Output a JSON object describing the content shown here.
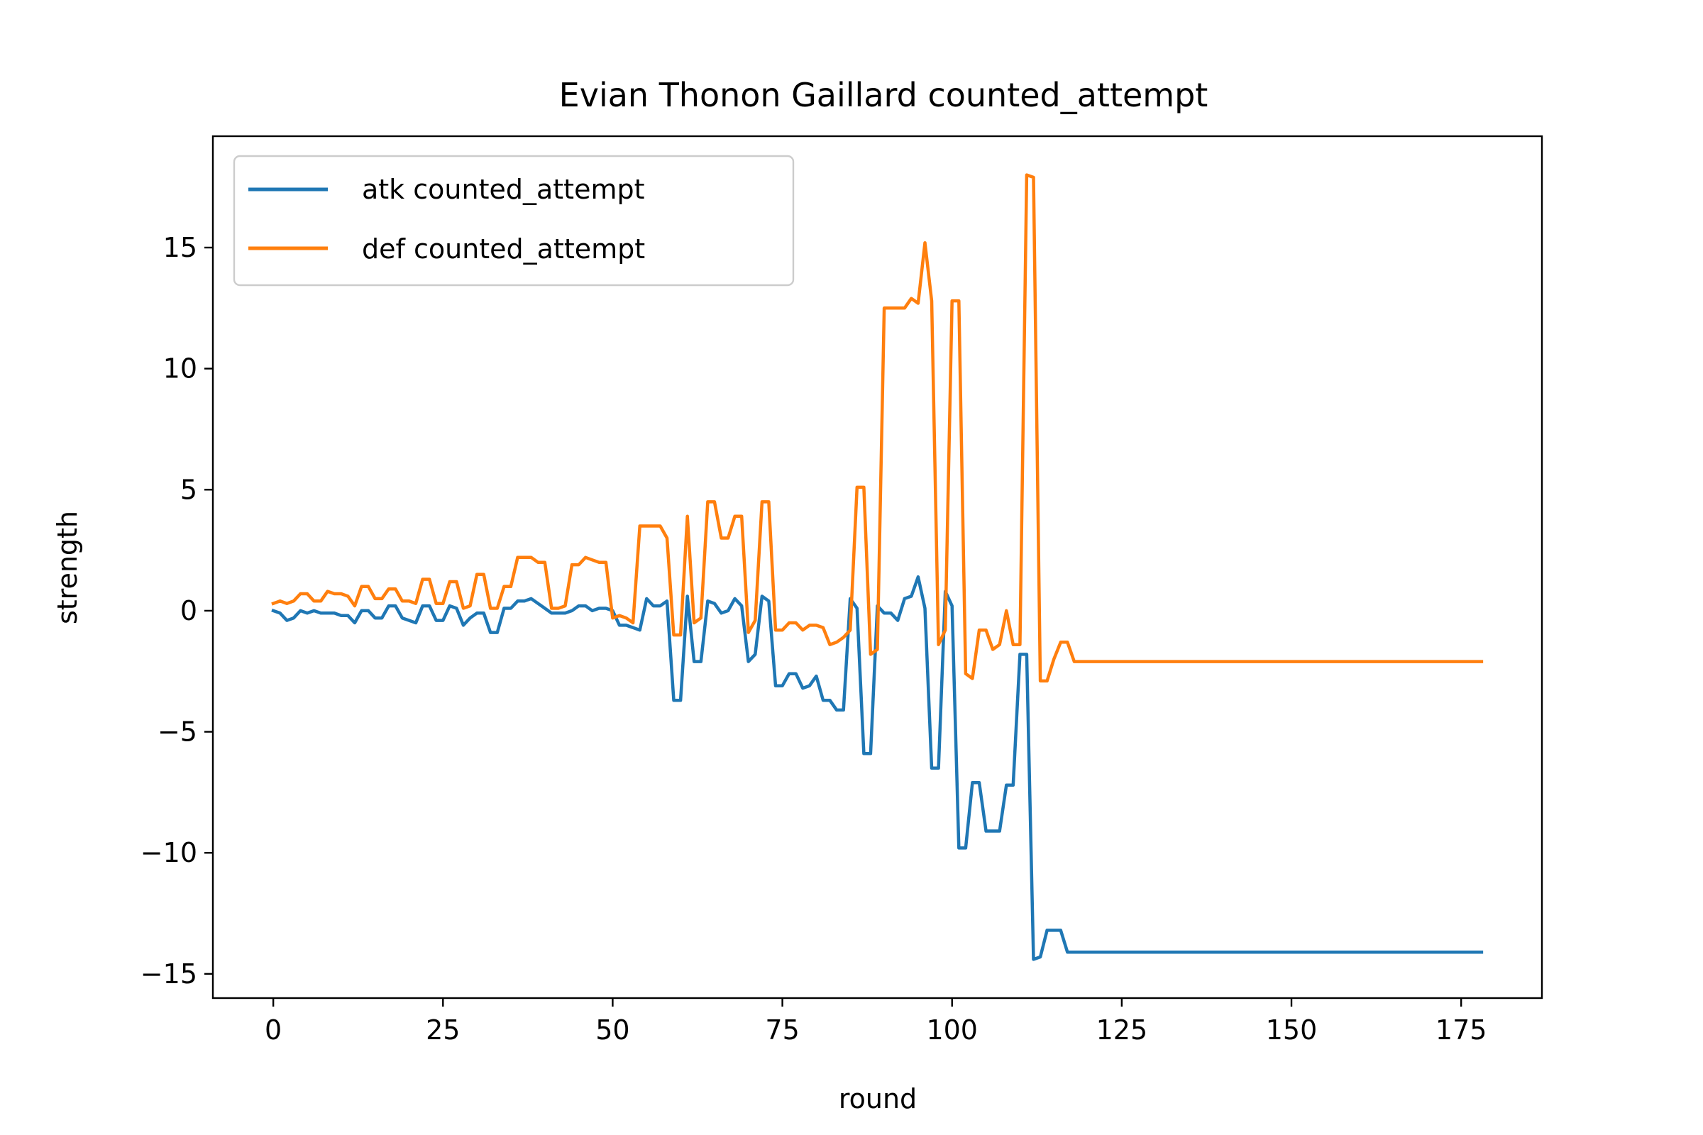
{
  "colors": {
    "atk": "#1f77b4",
    "def": "#ff7f0e"
  },
  "chart_data": {
    "type": "line",
    "title": "Evian Thonon Gaillard counted_attempt",
    "xlabel": "round",
    "ylabel": "strength",
    "xlim": [
      -8.9,
      186.9
    ],
    "ylim": [
      -16.0,
      19.6
    ],
    "xticks": [
      0,
      25,
      50,
      75,
      100,
      125,
      150,
      175
    ],
    "xtick_labels": [
      "0",
      "25",
      "50",
      "75",
      "100",
      "125",
      "150",
      "175"
    ],
    "yticks": [
      -15,
      -10,
      -5,
      0,
      5,
      10,
      15
    ],
    "ytick_labels": [
      "−15",
      "−10",
      "−5",
      "0",
      "5",
      "10",
      "15"
    ],
    "grid": false,
    "legend_position": "upper-left",
    "series": [
      {
        "name": "atk counted_attempt",
        "color": "#1f77b4",
        "points": [
          [
            0,
            0.0
          ],
          [
            1,
            -0.1
          ],
          [
            2,
            -0.4
          ],
          [
            3,
            -0.3
          ],
          [
            4,
            0.0
          ],
          [
            5,
            -0.1
          ],
          [
            6,
            0.0
          ],
          [
            7,
            -0.1
          ],
          [
            8,
            -0.1
          ],
          [
            9,
            -0.1
          ],
          [
            10,
            -0.2
          ],
          [
            11,
            -0.2
          ],
          [
            12,
            -0.5
          ],
          [
            13,
            0.0
          ],
          [
            14,
            0.0
          ],
          [
            15,
            -0.3
          ],
          [
            16,
            -0.3
          ],
          [
            17,
            0.2
          ],
          [
            18,
            0.2
          ],
          [
            19,
            -0.3
          ],
          [
            20,
            -0.4
          ],
          [
            21,
            -0.5
          ],
          [
            22,
            0.2
          ],
          [
            23,
            0.2
          ],
          [
            24,
            -0.4
          ],
          [
            25,
            -0.4
          ],
          [
            26,
            0.2
          ],
          [
            27,
            0.1
          ],
          [
            28,
            -0.6
          ],
          [
            29,
            -0.3
          ],
          [
            30,
            -0.1
          ],
          [
            31,
            -0.1
          ],
          [
            32,
            -0.9
          ],
          [
            33,
            -0.9
          ],
          [
            34,
            0.1
          ],
          [
            35,
            0.1
          ],
          [
            36,
            0.4
          ],
          [
            37,
            0.4
          ],
          [
            38,
            0.5
          ],
          [
            39,
            0.3
          ],
          [
            40,
            0.1
          ],
          [
            41,
            -0.1
          ],
          [
            42,
            -0.1
          ],
          [
            43,
            -0.1
          ],
          [
            44,
            0.0
          ],
          [
            45,
            0.2
          ],
          [
            46,
            0.2
          ],
          [
            47,
            0.0
          ],
          [
            48,
            0.1
          ],
          [
            49,
            0.1
          ],
          [
            50,
            0.0
          ],
          [
            51,
            -0.6
          ],
          [
            52,
            -0.6
          ],
          [
            53,
            -0.7
          ],
          [
            54,
            -0.8
          ],
          [
            55,
            0.5
          ],
          [
            56,
            0.2
          ],
          [
            57,
            0.2
          ],
          [
            58,
            0.4
          ],
          [
            59,
            -3.7
          ],
          [
            60,
            -3.7
          ],
          [
            61,
            0.6
          ],
          [
            62,
            -2.1
          ],
          [
            63,
            -2.1
          ],
          [
            64,
            0.4
          ],
          [
            65,
            0.3
          ],
          [
            66,
            -0.1
          ],
          [
            67,
            0.0
          ],
          [
            68,
            0.5
          ],
          [
            69,
            0.2
          ],
          [
            70,
            -2.1
          ],
          [
            71,
            -1.8
          ],
          [
            72,
            0.6
          ],
          [
            73,
            0.4
          ],
          [
            74,
            -3.1
          ],
          [
            75,
            -3.1
          ],
          [
            76,
            -2.6
          ],
          [
            77,
            -2.6
          ],
          [
            78,
            -3.2
          ],
          [
            79,
            -3.1
          ],
          [
            80,
            -2.7
          ],
          [
            81,
            -3.7
          ],
          [
            82,
            -3.7
          ],
          [
            83,
            -4.1
          ],
          [
            84,
            -4.1
          ],
          [
            85,
            0.5
          ],
          [
            86,
            0.1
          ],
          [
            87,
            -5.9
          ],
          [
            88,
            -5.9
          ],
          [
            89,
            0.2
          ],
          [
            90,
            -0.1
          ],
          [
            91,
            -0.1
          ],
          [
            92,
            -0.4
          ],
          [
            93,
            0.5
          ],
          [
            94,
            0.6
          ],
          [
            95,
            1.4
          ],
          [
            96,
            0.1
          ],
          [
            97,
            -6.5
          ],
          [
            98,
            -6.5
          ],
          [
            99,
            0.8
          ],
          [
            100,
            0.2
          ],
          [
            101,
            -9.8
          ],
          [
            102,
            -9.8
          ],
          [
            103,
            -7.1
          ],
          [
            104,
            -7.1
          ],
          [
            105,
            -9.1
          ],
          [
            106,
            -9.1
          ],
          [
            107,
            -9.1
          ],
          [
            108,
            -7.2
          ],
          [
            109,
            -7.2
          ],
          [
            110,
            -1.8
          ],
          [
            111,
            -1.8
          ],
          [
            112,
            -14.4
          ],
          [
            113,
            -14.3
          ],
          [
            114,
            -13.2
          ],
          [
            115,
            -13.2
          ],
          [
            116,
            -13.2
          ],
          [
            117,
            -14.1
          ],
          [
            118,
            -14.1
          ],
          [
            178,
            -14.1
          ]
        ]
      },
      {
        "name": "def counted_attempt",
        "color": "#ff7f0e",
        "points": [
          [
            0,
            0.3
          ],
          [
            1,
            0.4
          ],
          [
            2,
            0.3
          ],
          [
            3,
            0.4
          ],
          [
            4,
            0.7
          ],
          [
            5,
            0.7
          ],
          [
            6,
            0.4
          ],
          [
            7,
            0.4
          ],
          [
            8,
            0.8
          ],
          [
            9,
            0.7
          ],
          [
            10,
            0.7
          ],
          [
            11,
            0.6
          ],
          [
            12,
            0.2
          ],
          [
            13,
            1.0
          ],
          [
            14,
            1.0
          ],
          [
            15,
            0.5
          ],
          [
            16,
            0.5
          ],
          [
            17,
            0.9
          ],
          [
            18,
            0.9
          ],
          [
            19,
            0.4
          ],
          [
            20,
            0.4
          ],
          [
            21,
            0.3
          ],
          [
            22,
            1.3
          ],
          [
            23,
            1.3
          ],
          [
            24,
            0.3
          ],
          [
            25,
            0.3
          ],
          [
            26,
            1.2
          ],
          [
            27,
            1.2
          ],
          [
            28,
            0.1
          ],
          [
            29,
            0.2
          ],
          [
            30,
            1.5
          ],
          [
            31,
            1.5
          ],
          [
            32,
            0.1
          ],
          [
            33,
            0.1
          ],
          [
            34,
            1.0
          ],
          [
            35,
            1.0
          ],
          [
            36,
            2.2
          ],
          [
            37,
            2.2
          ],
          [
            38,
            2.2
          ],
          [
            39,
            2.0
          ],
          [
            40,
            2.0
          ],
          [
            41,
            0.1
          ],
          [
            42,
            0.1
          ],
          [
            43,
            0.2
          ],
          [
            44,
            1.9
          ],
          [
            45,
            1.9
          ],
          [
            46,
            2.2
          ],
          [
            47,
            2.1
          ],
          [
            48,
            2.0
          ],
          [
            49,
            2.0
          ],
          [
            50,
            -0.3
          ],
          [
            51,
            -0.2
          ],
          [
            52,
            -0.3
          ],
          [
            53,
            -0.5
          ],
          [
            54,
            3.5
          ],
          [
            55,
            3.5
          ],
          [
            56,
            3.5
          ],
          [
            57,
            3.5
          ],
          [
            58,
            3.0
          ],
          [
            59,
            -1.0
          ],
          [
            60,
            -1.0
          ],
          [
            61,
            3.9
          ],
          [
            62,
            -0.5
          ],
          [
            63,
            -0.3
          ],
          [
            64,
            4.5
          ],
          [
            65,
            4.5
          ],
          [
            66,
            3.0
          ],
          [
            67,
            3.0
          ],
          [
            68,
            3.9
          ],
          [
            69,
            3.9
          ],
          [
            70,
            -0.9
          ],
          [
            71,
            -0.4
          ],
          [
            72,
            4.5
          ],
          [
            73,
            4.5
          ],
          [
            74,
            -0.8
          ],
          [
            75,
            -0.8
          ],
          [
            76,
            -0.5
          ],
          [
            77,
            -0.5
          ],
          [
            78,
            -0.8
          ],
          [
            79,
            -0.6
          ],
          [
            80,
            -0.6
          ],
          [
            81,
            -0.7
          ],
          [
            82,
            -1.4
          ],
          [
            83,
            -1.3
          ],
          [
            84,
            -1.1
          ],
          [
            85,
            -0.8
          ],
          [
            86,
            5.1
          ],
          [
            87,
            5.1
          ],
          [
            88,
            -1.8
          ],
          [
            89,
            -1.6
          ],
          [
            90,
            12.5
          ],
          [
            91,
            12.5
          ],
          [
            92,
            12.5
          ],
          [
            93,
            12.5
          ],
          [
            94,
            12.9
          ],
          [
            95,
            12.7
          ],
          [
            96,
            15.2
          ],
          [
            97,
            12.8
          ],
          [
            98,
            -1.4
          ],
          [
            99,
            -0.8
          ],
          [
            100,
            12.8
          ],
          [
            101,
            12.8
          ],
          [
            102,
            -2.6
          ],
          [
            103,
            -2.8
          ],
          [
            104,
            -0.8
          ],
          [
            105,
            -0.8
          ],
          [
            106,
            -1.6
          ],
          [
            107,
            -1.4
          ],
          [
            108,
            0.0
          ],
          [
            109,
            -1.4
          ],
          [
            110,
            -1.4
          ],
          [
            111,
            18.0
          ],
          [
            112,
            17.9
          ],
          [
            113,
            -2.9
          ],
          [
            114,
            -2.9
          ],
          [
            115,
            -2.0
          ],
          [
            116,
            -1.3
          ],
          [
            117,
            -1.3
          ],
          [
            118,
            -2.1
          ],
          [
            119,
            -2.1
          ],
          [
            178,
            -2.1
          ]
        ]
      }
    ]
  }
}
